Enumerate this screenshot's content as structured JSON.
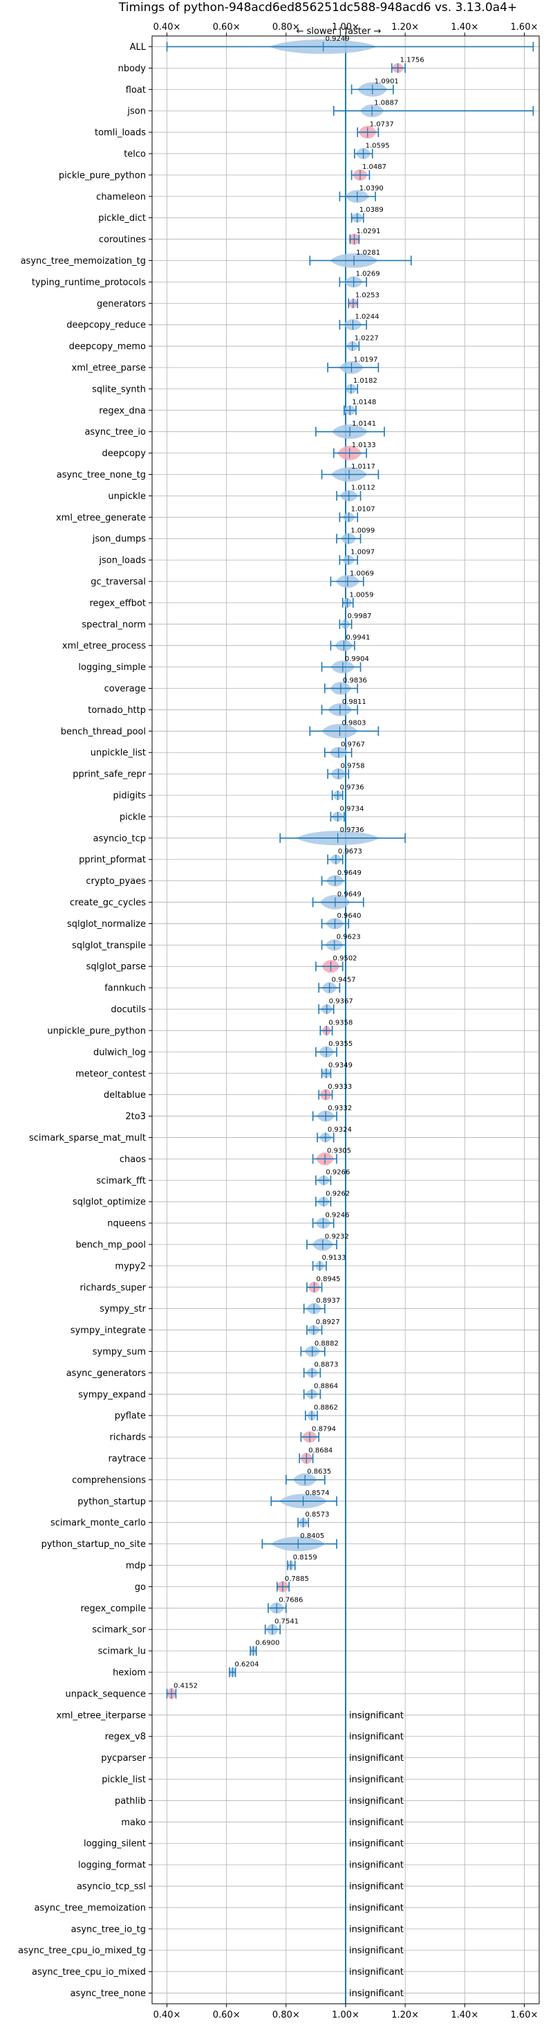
{
  "chart_data": {
    "type": "violin",
    "title": "Timings of python-948acd6ed856251dc588-948acd6 vs. 3.13.0a4+",
    "direction_label": "← slower | faster →",
    "xlim": [
      0.35,
      1.65
    ],
    "x_ticks": [
      0.4,
      0.6,
      0.8,
      1.0,
      1.2,
      1.4,
      1.6
    ],
    "x_tick_labels": [
      "0.40×",
      "0.60×",
      "0.80×",
      "1.00×",
      "1.20×",
      "1.40×",
      "1.60×"
    ],
    "reference_x": 1.0,
    "insignificant_label": "insignificant",
    "benchmarks": [
      {
        "name": "ALL",
        "value": 0.9249,
        "value_label": "0.9249",
        "lo": 0.4,
        "hi": 1.63,
        "w": 0.18,
        "h": 0.45,
        "hl": false
      },
      {
        "name": "nbody",
        "value": 1.1756,
        "value_label": "1.1756",
        "lo": 1.155,
        "hi": 1.2,
        "w": 0.02,
        "h": 0.3,
        "hl": true
      },
      {
        "name": "float",
        "value": 1.0901,
        "value_label": "1.0901",
        "lo": 1.02,
        "hi": 1.16,
        "w": 0.05,
        "h": 0.45,
        "hl": false
      },
      {
        "name": "json",
        "value": 1.0887,
        "value_label": "1.0887",
        "lo": 0.96,
        "hi": 1.63,
        "w": 0.04,
        "h": 0.4,
        "hl": false
      },
      {
        "name": "tomli_loads",
        "value": 1.0737,
        "value_label": "1.0737",
        "lo": 1.04,
        "hi": 1.11,
        "w": 0.03,
        "h": 0.4,
        "hl": true
      },
      {
        "name": "telco",
        "value": 1.0595,
        "value_label": "1.0595",
        "lo": 1.03,
        "hi": 1.09,
        "w": 0.025,
        "h": 0.35,
        "hl": false
      },
      {
        "name": "pickle_pure_python",
        "value": 1.0487,
        "value_label": "1.0487",
        "lo": 1.02,
        "hi": 1.08,
        "w": 0.025,
        "h": 0.35,
        "hl": true
      },
      {
        "name": "chameleon",
        "value": 1.039,
        "value_label": "1.0390",
        "lo": 0.98,
        "hi": 1.1,
        "w": 0.04,
        "h": 0.4,
        "hl": false
      },
      {
        "name": "pickle_dict",
        "value": 1.0389,
        "value_label": "1.0389",
        "lo": 1.02,
        "hi": 1.06,
        "w": 0.02,
        "h": 0.3,
        "hl": false
      },
      {
        "name": "coroutines",
        "value": 1.0291,
        "value_label": "1.0291",
        "lo": 1.015,
        "hi": 1.045,
        "w": 0.02,
        "h": 0.35,
        "hl": true
      },
      {
        "name": "async_tree_memoization_tg",
        "value": 1.0281,
        "value_label": "1.0281",
        "lo": 0.88,
        "hi": 1.22,
        "w": 0.08,
        "h": 0.45,
        "hl": false
      },
      {
        "name": "typing_runtime_protocols",
        "value": 1.0269,
        "value_label": "1.0269",
        "lo": 0.98,
        "hi": 1.07,
        "w": 0.03,
        "h": 0.35,
        "hl": false
      },
      {
        "name": "generators",
        "value": 1.0253,
        "value_label": "1.0253",
        "lo": 1.01,
        "hi": 1.04,
        "w": 0.015,
        "h": 0.3,
        "hl": true
      },
      {
        "name": "deepcopy_reduce",
        "value": 1.0244,
        "value_label": "1.0244",
        "lo": 0.98,
        "hi": 1.07,
        "w": 0.03,
        "h": 0.35,
        "hl": false
      },
      {
        "name": "deepcopy_memo",
        "value": 1.0227,
        "value_label": "1.0227",
        "lo": 1.0,
        "hi": 1.045,
        "w": 0.02,
        "h": 0.3,
        "hl": false
      },
      {
        "name": "xml_etree_parse",
        "value": 1.0197,
        "value_label": "1.0197",
        "lo": 0.94,
        "hi": 1.11,
        "w": 0.04,
        "h": 0.4,
        "hl": false
      },
      {
        "name": "sqlite_synth",
        "value": 1.0182,
        "value_label": "1.0182",
        "lo": 1.0,
        "hi": 1.04,
        "w": 0.02,
        "h": 0.3,
        "hl": false
      },
      {
        "name": "regex_dna",
        "value": 1.0148,
        "value_label": "1.0148",
        "lo": 0.995,
        "hi": 1.035,
        "w": 0.02,
        "h": 0.3,
        "hl": false
      },
      {
        "name": "async_tree_io",
        "value": 1.0141,
        "value_label": "1.0141",
        "lo": 0.9,
        "hi": 1.13,
        "w": 0.06,
        "h": 0.45,
        "hl": false
      },
      {
        "name": "deepcopy",
        "value": 1.0133,
        "value_label": "1.0133",
        "lo": 0.96,
        "hi": 1.07,
        "w": 0.04,
        "h": 0.45,
        "hl": true
      },
      {
        "name": "async_tree_none_tg",
        "value": 1.0117,
        "value_label": "1.0117",
        "lo": 0.92,
        "hi": 1.11,
        "w": 0.06,
        "h": 0.45,
        "hl": false
      },
      {
        "name": "unpickle",
        "value": 1.0112,
        "value_label": "1.0112",
        "lo": 0.97,
        "hi": 1.05,
        "w": 0.03,
        "h": 0.35,
        "hl": false
      },
      {
        "name": "xml_etree_generate",
        "value": 1.0107,
        "value_label": "1.0107",
        "lo": 0.98,
        "hi": 1.04,
        "w": 0.02,
        "h": 0.3,
        "hl": false
      },
      {
        "name": "json_dumps",
        "value": 1.0099,
        "value_label": "1.0099",
        "lo": 0.97,
        "hi": 1.05,
        "w": 0.025,
        "h": 0.35,
        "hl": false
      },
      {
        "name": "json_loads",
        "value": 1.0097,
        "value_label": "1.0097",
        "lo": 0.98,
        "hi": 1.04,
        "w": 0.02,
        "h": 0.3,
        "hl": false
      },
      {
        "name": "gc_traversal",
        "value": 1.0069,
        "value_label": "1.0069",
        "lo": 0.95,
        "hi": 1.06,
        "w": 0.04,
        "h": 0.4,
        "hl": false
      },
      {
        "name": "regex_effbot",
        "value": 1.0059,
        "value_label": "1.0059",
        "lo": 0.99,
        "hi": 1.025,
        "w": 0.015,
        "h": 0.3,
        "hl": false
      },
      {
        "name": "spectral_norm",
        "value": 0.9987,
        "value_label": "0.9987",
        "lo": 0.98,
        "hi": 1.02,
        "w": 0.015,
        "h": 0.3,
        "hl": false
      },
      {
        "name": "xml_etree_process",
        "value": 0.9941,
        "value_label": "0.9941",
        "lo": 0.95,
        "hi": 1.03,
        "w": 0.03,
        "h": 0.35,
        "hl": false
      },
      {
        "name": "logging_simple",
        "value": 0.9904,
        "value_label": "0.9904",
        "lo": 0.92,
        "hi": 1.05,
        "w": 0.04,
        "h": 0.4,
        "hl": false
      },
      {
        "name": "coverage",
        "value": 0.9836,
        "value_label": "0.9836",
        "lo": 0.93,
        "hi": 1.04,
        "w": 0.035,
        "h": 0.4,
        "hl": false
      },
      {
        "name": "tornado_http",
        "value": 0.9811,
        "value_label": "0.9811",
        "lo": 0.92,
        "hi": 1.04,
        "w": 0.04,
        "h": 0.4,
        "hl": false
      },
      {
        "name": "bench_thread_pool",
        "value": 0.9803,
        "value_label": "0.9803",
        "lo": 0.88,
        "hi": 1.11,
        "w": 0.06,
        "h": 0.45,
        "hl": false
      },
      {
        "name": "unpickle_list",
        "value": 0.9767,
        "value_label": "0.9767",
        "lo": 0.93,
        "hi": 1.02,
        "w": 0.03,
        "h": 0.35,
        "hl": false
      },
      {
        "name": "pprint_safe_repr",
        "value": 0.9758,
        "value_label": "0.9758",
        "lo": 0.94,
        "hi": 1.01,
        "w": 0.025,
        "h": 0.35,
        "hl": false
      },
      {
        "name": "pidigits",
        "value": 0.9736,
        "value_label": "0.9736",
        "lo": 0.955,
        "hi": 0.99,
        "w": 0.015,
        "h": 0.3,
        "hl": false
      },
      {
        "name": "pickle",
        "value": 0.9734,
        "value_label": "0.9734",
        "lo": 0.95,
        "hi": 0.995,
        "w": 0.02,
        "h": 0.3,
        "hl": false
      },
      {
        "name": "asyncio_tcp",
        "value": 0.9736,
        "value_label": "0.9736",
        "lo": 0.78,
        "hi": 1.2,
        "w": 0.14,
        "h": 0.45,
        "hl": false
      },
      {
        "name": "pprint_pformat",
        "value": 0.9673,
        "value_label": "0.9673",
        "lo": 0.94,
        "hi": 0.99,
        "w": 0.02,
        "h": 0.3,
        "hl": false
      },
      {
        "name": "crypto_pyaes",
        "value": 0.9649,
        "value_label": "0.9649",
        "lo": 0.92,
        "hi": 1.0,
        "w": 0.03,
        "h": 0.35,
        "hl": false
      },
      {
        "name": "create_gc_cycles",
        "value": 0.9649,
        "value_label": "0.9649",
        "lo": 0.89,
        "hi": 1.06,
        "w": 0.05,
        "h": 0.45,
        "hl": false
      },
      {
        "name": "sqlglot_normalize",
        "value": 0.964,
        "value_label": "0.9640",
        "lo": 0.92,
        "hi": 1.01,
        "w": 0.03,
        "h": 0.35,
        "hl": false
      },
      {
        "name": "sqlglot_transpile",
        "value": 0.9623,
        "value_label": "0.9623",
        "lo": 0.92,
        "hi": 1.0,
        "w": 0.03,
        "h": 0.35,
        "hl": false
      },
      {
        "name": "sqlglot_parse",
        "value": 0.9502,
        "value_label": "0.9502",
        "lo": 0.9,
        "hi": 0.99,
        "w": 0.03,
        "h": 0.4,
        "hl": true
      },
      {
        "name": "fannkuch",
        "value": 0.9457,
        "value_label": "0.9457",
        "lo": 0.91,
        "hi": 0.98,
        "w": 0.025,
        "h": 0.35,
        "hl": false
      },
      {
        "name": "docutils",
        "value": 0.9367,
        "value_label": "0.9367",
        "lo": 0.91,
        "hi": 0.96,
        "w": 0.02,
        "h": 0.3,
        "hl": false
      },
      {
        "name": "unpickle_pure_python",
        "value": 0.9358,
        "value_label": "0.9358",
        "lo": 0.915,
        "hi": 0.955,
        "w": 0.015,
        "h": 0.3,
        "hl": true
      },
      {
        "name": "dulwich_log",
        "value": 0.9355,
        "value_label": "0.9355",
        "lo": 0.9,
        "hi": 0.97,
        "w": 0.025,
        "h": 0.35,
        "hl": false
      },
      {
        "name": "meteor_contest",
        "value": 0.9349,
        "value_label": "0.9349",
        "lo": 0.92,
        "hi": 0.95,
        "w": 0.015,
        "h": 0.3,
        "hl": false
      },
      {
        "name": "deltablue",
        "value": 0.9333,
        "value_label": "0.9333",
        "lo": 0.91,
        "hi": 0.955,
        "w": 0.02,
        "h": 0.35,
        "hl": true
      },
      {
        "name": "2to3",
        "value": 0.9332,
        "value_label": "0.9332",
        "lo": 0.89,
        "hi": 0.97,
        "w": 0.03,
        "h": 0.35,
        "hl": false
      },
      {
        "name": "scimark_sparse_mat_mult",
        "value": 0.9324,
        "value_label": "0.9324",
        "lo": 0.905,
        "hi": 0.96,
        "w": 0.02,
        "h": 0.3,
        "hl": false
      },
      {
        "name": "chaos",
        "value": 0.9305,
        "value_label": "0.9305",
        "lo": 0.89,
        "hi": 0.97,
        "w": 0.03,
        "h": 0.4,
        "hl": true
      },
      {
        "name": "scimark_fft",
        "value": 0.9266,
        "value_label": "0.9266",
        "lo": 0.9,
        "hi": 0.95,
        "w": 0.02,
        "h": 0.3,
        "hl": false
      },
      {
        "name": "sqlglot_optimize",
        "value": 0.9262,
        "value_label": "0.9262",
        "lo": 0.9,
        "hi": 0.95,
        "w": 0.02,
        "h": 0.3,
        "hl": false
      },
      {
        "name": "nqueens",
        "value": 0.9246,
        "value_label": "0.9246",
        "lo": 0.89,
        "hi": 0.96,
        "w": 0.025,
        "h": 0.35,
        "hl": false
      },
      {
        "name": "bench_mp_pool",
        "value": 0.9232,
        "value_label": "0.9232",
        "lo": 0.87,
        "hi": 0.97,
        "w": 0.035,
        "h": 0.4,
        "hl": false
      },
      {
        "name": "mypy2",
        "value": 0.9133,
        "value_label": "0.9133",
        "lo": 0.89,
        "hi": 0.935,
        "w": 0.015,
        "h": 0.3,
        "hl": false
      },
      {
        "name": "richards_super",
        "value": 0.8945,
        "value_label": "0.8945",
        "lo": 0.87,
        "hi": 0.92,
        "w": 0.02,
        "h": 0.35,
        "hl": true
      },
      {
        "name": "sympy_str",
        "value": 0.8937,
        "value_label": "0.8937",
        "lo": 0.86,
        "hi": 0.93,
        "w": 0.025,
        "h": 0.35,
        "hl": false
      },
      {
        "name": "sympy_integrate",
        "value": 0.8927,
        "value_label": "0.8927",
        "lo": 0.87,
        "hi": 0.92,
        "w": 0.02,
        "h": 0.3,
        "hl": false
      },
      {
        "name": "sympy_sum",
        "value": 0.8882,
        "value_label": "0.8882",
        "lo": 0.85,
        "hi": 0.93,
        "w": 0.025,
        "h": 0.35,
        "hl": false
      },
      {
        "name": "async_generators",
        "value": 0.8873,
        "value_label": "0.8873",
        "lo": 0.86,
        "hi": 0.915,
        "w": 0.02,
        "h": 0.3,
        "hl": false
      },
      {
        "name": "sympy_expand",
        "value": 0.8864,
        "value_label": "0.8864",
        "lo": 0.86,
        "hi": 0.915,
        "w": 0.02,
        "h": 0.3,
        "hl": false
      },
      {
        "name": "pyflate",
        "value": 0.8862,
        "value_label": "0.8862",
        "lo": 0.865,
        "hi": 0.905,
        "w": 0.015,
        "h": 0.3,
        "hl": false
      },
      {
        "name": "richards",
        "value": 0.8794,
        "value_label": "0.8794",
        "lo": 0.85,
        "hi": 0.91,
        "w": 0.025,
        "h": 0.35,
        "hl": true
      },
      {
        "name": "raytrace",
        "value": 0.8684,
        "value_label": "0.8684",
        "lo": 0.845,
        "hi": 0.89,
        "w": 0.02,
        "h": 0.35,
        "hl": true
      },
      {
        "name": "comprehensions",
        "value": 0.8635,
        "value_label": "0.8635",
        "lo": 0.8,
        "hi": 0.93,
        "w": 0.04,
        "h": 0.4,
        "hl": false
      },
      {
        "name": "python_startup",
        "value": 0.8574,
        "value_label": "0.8574",
        "lo": 0.75,
        "hi": 0.97,
        "w": 0.08,
        "h": 0.45,
        "hl": false
      },
      {
        "name": "scimark_monte_carlo",
        "value": 0.8573,
        "value_label": "0.8573",
        "lo": 0.84,
        "hi": 0.875,
        "w": 0.015,
        "h": 0.3,
        "hl": false
      },
      {
        "name": "python_startup_no_site",
        "value": 0.8405,
        "value_label": "0.8405",
        "lo": 0.72,
        "hi": 0.97,
        "w": 0.09,
        "h": 0.45,
        "hl": false
      },
      {
        "name": "mdp",
        "value": 0.8159,
        "value_label": "0.8159",
        "lo": 0.805,
        "hi": 0.83,
        "w": 0.01,
        "h": 0.3,
        "hl": false
      },
      {
        "name": "go",
        "value": 0.7885,
        "value_label": "0.7885",
        "lo": 0.77,
        "hi": 0.81,
        "w": 0.02,
        "h": 0.35,
        "hl": true
      },
      {
        "name": "regex_compile",
        "value": 0.7686,
        "value_label": "0.7686",
        "lo": 0.74,
        "hi": 0.8,
        "w": 0.025,
        "h": 0.35,
        "hl": false
      },
      {
        "name": "scimark_sor",
        "value": 0.7541,
        "value_label": "0.7541",
        "lo": 0.73,
        "hi": 0.78,
        "w": 0.02,
        "h": 0.35,
        "hl": false
      },
      {
        "name": "scimark_lu",
        "value": 0.69,
        "value_label": "0.6900",
        "lo": 0.68,
        "hi": 0.7,
        "w": 0.01,
        "h": 0.3,
        "hl": false
      },
      {
        "name": "hexiom",
        "value": 0.6204,
        "value_label": "0.6204",
        "lo": 0.61,
        "hi": 0.63,
        "w": 0.01,
        "h": 0.3,
        "hl": false
      },
      {
        "name": "unpack_sequence",
        "value": 0.4152,
        "value_label": "0.4152",
        "lo": 0.4,
        "hi": 0.43,
        "w": 0.015,
        "h": 0.35,
        "hl": true
      },
      {
        "name": "xml_etree_iterparse",
        "insignificant": true
      },
      {
        "name": "regex_v8",
        "insignificant": true
      },
      {
        "name": "pycparser",
        "insignificant": true
      },
      {
        "name": "pickle_list",
        "insignificant": true
      },
      {
        "name": "pathlib",
        "insignificant": true
      },
      {
        "name": "mako",
        "insignificant": true
      },
      {
        "name": "logging_silent",
        "insignificant": true
      },
      {
        "name": "logging_format",
        "insignificant": true
      },
      {
        "name": "asyncio_tcp_ssl",
        "insignificant": true
      },
      {
        "name": "async_tree_memoization",
        "insignificant": true
      },
      {
        "name": "async_tree_io_tg",
        "insignificant": true
      },
      {
        "name": "async_tree_cpu_io_mixed_tg",
        "insignificant": true
      },
      {
        "name": "async_tree_cpu_io_mixed",
        "insignificant": true
      },
      {
        "name": "async_tree_none",
        "insignificant": true
      }
    ],
    "colors": {
      "violin": "#a8c8e6",
      "violin_highlight": "#f4a6b4",
      "line": "#1f77b4",
      "grid": "#b0b0b0",
      "axis": "#000000"
    },
    "grid": true
  }
}
